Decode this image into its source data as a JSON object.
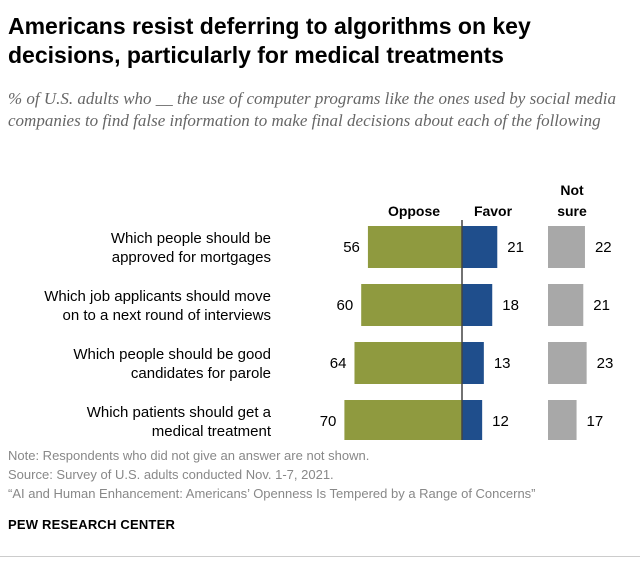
{
  "title": "Americans resist deferring to algorithms on key decisions, particularly for medical treatments",
  "subtitle": "% of U.S. adults who __ the use of computer programs like the ones used by social media companies to find false information to make final decisions about each of the following",
  "notes": {
    "note": "Note: Respondents who did not give an answer are not shown.",
    "source": "Source: Survey of U.S. adults conducted Nov. 1-7, 2021.",
    "report": "“AI and Human Enhancement: Americans’ Openness Is Tempered by a Range of Concerns”"
  },
  "brand": "PEW RESEARCH CENTER",
  "colors": {
    "oppose": "#8f9a3f",
    "favor": "#1f4e8c",
    "not_sure": "#a8a8a8"
  },
  "chart_data": {
    "type": "bar",
    "categories": [
      [
        "Which people should be",
        "approved for mortgages"
      ],
      [
        "Which job applicants should move",
        "on to a next round of interviews"
      ],
      [
        "Which people should be good",
        "candidates for parole"
      ],
      [
        "Which patients should get a",
        "medical treatment"
      ]
    ],
    "series": [
      {
        "name": "Oppose",
        "values": [
          56,
          60,
          64,
          70
        ]
      },
      {
        "name": "Favor",
        "values": [
          21,
          18,
          13,
          12
        ]
      },
      {
        "name": "Not sure",
        "values": [
          22,
          21,
          23,
          17
        ]
      }
    ]
  }
}
